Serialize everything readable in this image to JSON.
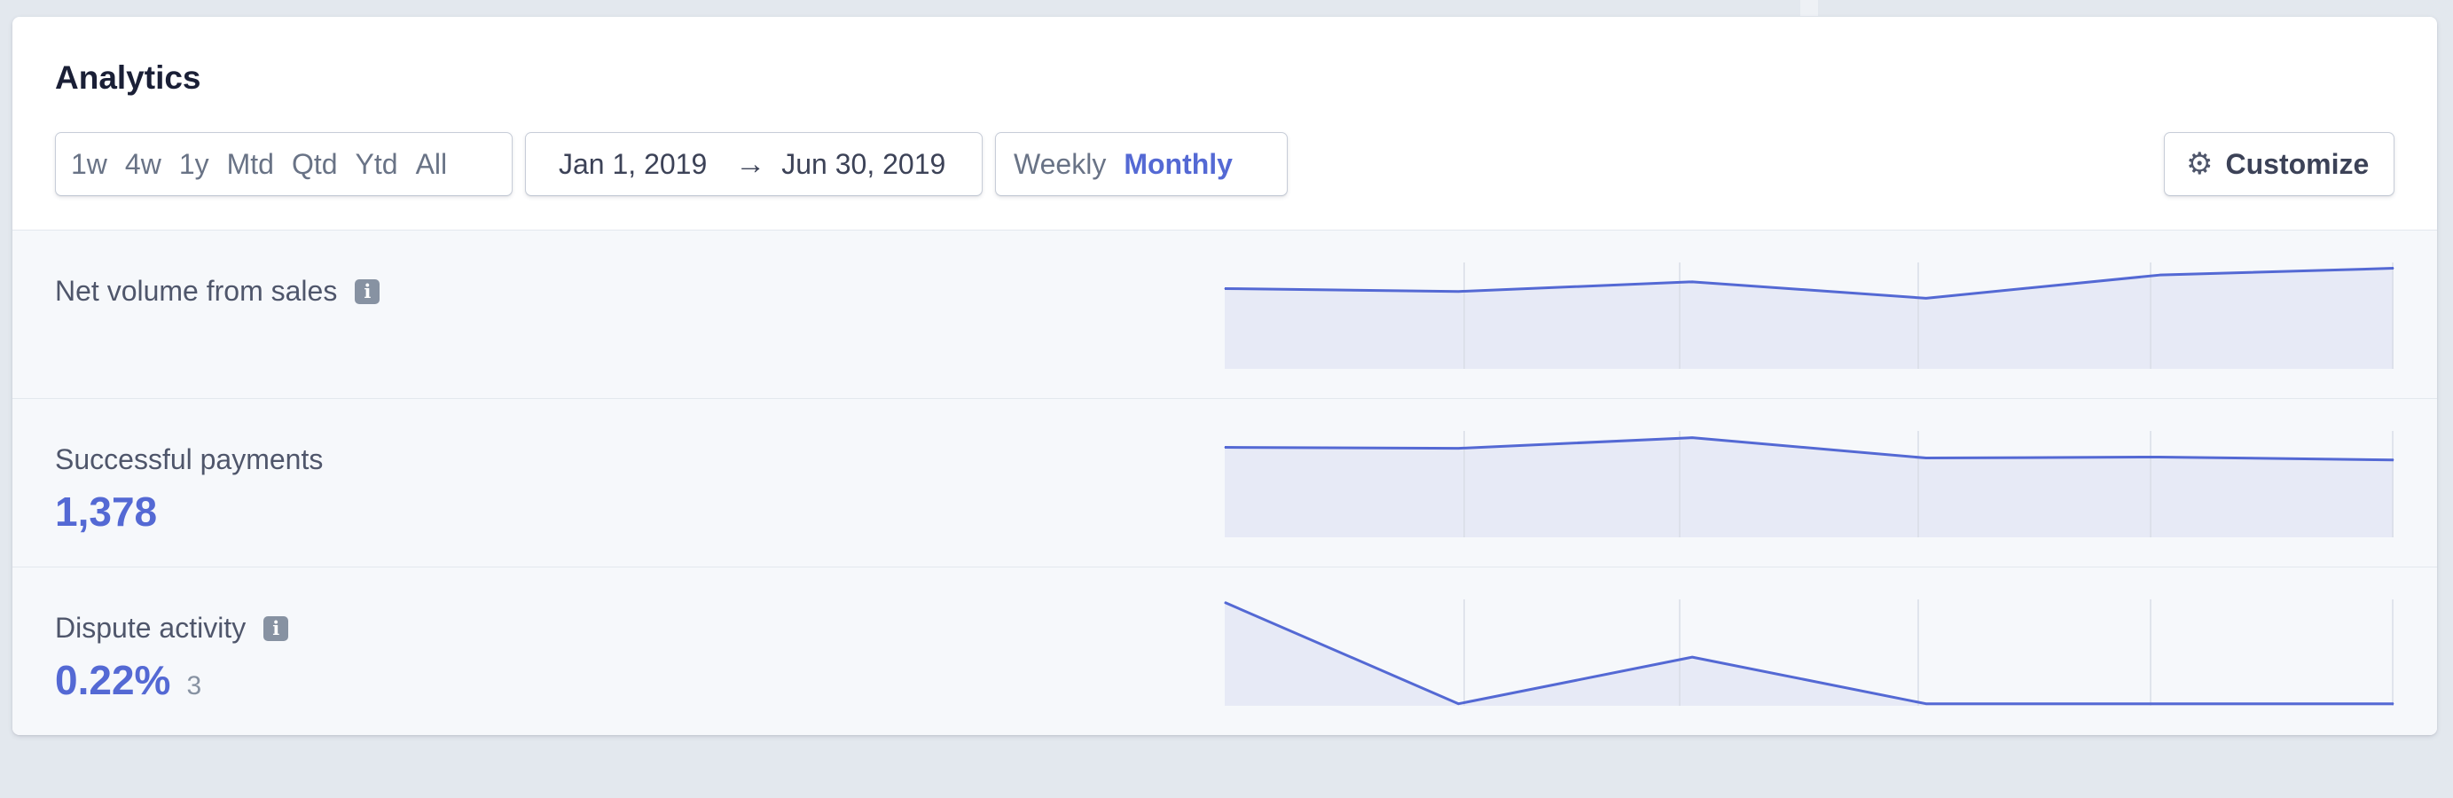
{
  "title": "Analytics",
  "ranges": [
    "1w",
    "4w",
    "1y",
    "Mtd",
    "Qtd",
    "Ytd",
    "All"
  ],
  "date_range": {
    "start": "Jan 1, 2019",
    "arrow": "→",
    "end": "Jun 30, 2019"
  },
  "period": {
    "weekly": "Weekly",
    "monthly": "Monthly",
    "selected": "Monthly"
  },
  "customize_label": "Customize",
  "colors": {
    "accent": "#5469d4",
    "fill": "#e4e8f5",
    "grid": "#d8dde6"
  },
  "metrics": [
    {
      "label": "Net volume from sales",
      "info": true,
      "value": "",
      "sub": ""
    },
    {
      "label": "Successful payments",
      "info": false,
      "value": "1,378",
      "sub": ""
    },
    {
      "label": "Dispute activity",
      "info": true,
      "value": "0.22%",
      "sub": "3"
    }
  ],
  "chart_data": [
    {
      "type": "area",
      "series": [
        {
          "values": [
            0.83,
            0.8,
            0.9,
            0.73,
            0.97,
            1.04
          ]
        }
      ],
      "ylim": [
        0,
        1.1
      ]
    },
    {
      "type": "area",
      "series": [
        {
          "values": [
            0.93,
            0.92,
            1.03,
            0.82,
            0.83,
            0.8
          ]
        }
      ],
      "ylim": [
        0,
        1.1
      ]
    },
    {
      "type": "area",
      "series": [
        {
          "values": [
            1.02,
            0.02,
            0.48,
            0.02,
            0.02,
            0.02
          ]
        }
      ],
      "ylim": [
        0,
        1.05
      ]
    }
  ]
}
